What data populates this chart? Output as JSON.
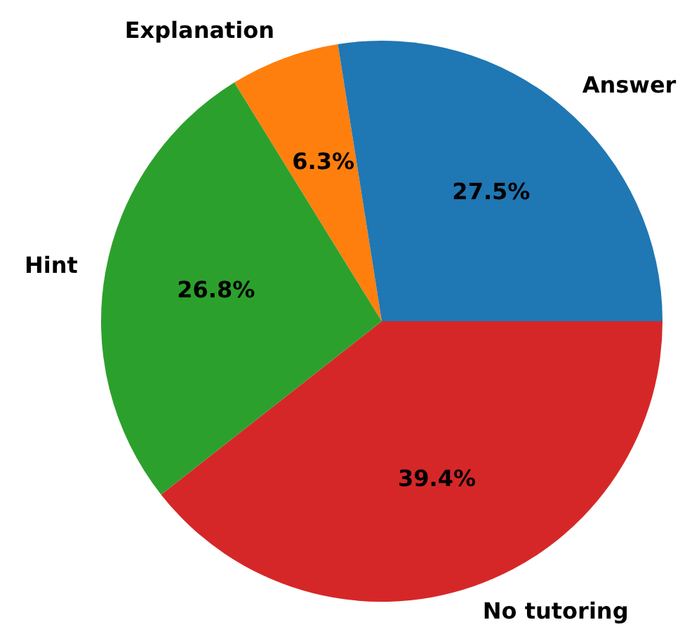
{
  "chart_data": {
    "type": "pie",
    "categories": [
      "Answer",
      "Explanation",
      "Hint",
      "No tutoring"
    ],
    "values": [
      27.5,
      6.3,
      26.8,
      39.4
    ],
    "colors": [
      "#1f77b4",
      "#ff7f0e",
      "#2ca02c",
      "#d62728"
    ],
    "value_labels": [
      "27.5%",
      "6.3%",
      "26.8%",
      "39.4%"
    ],
    "legend": false
  }
}
